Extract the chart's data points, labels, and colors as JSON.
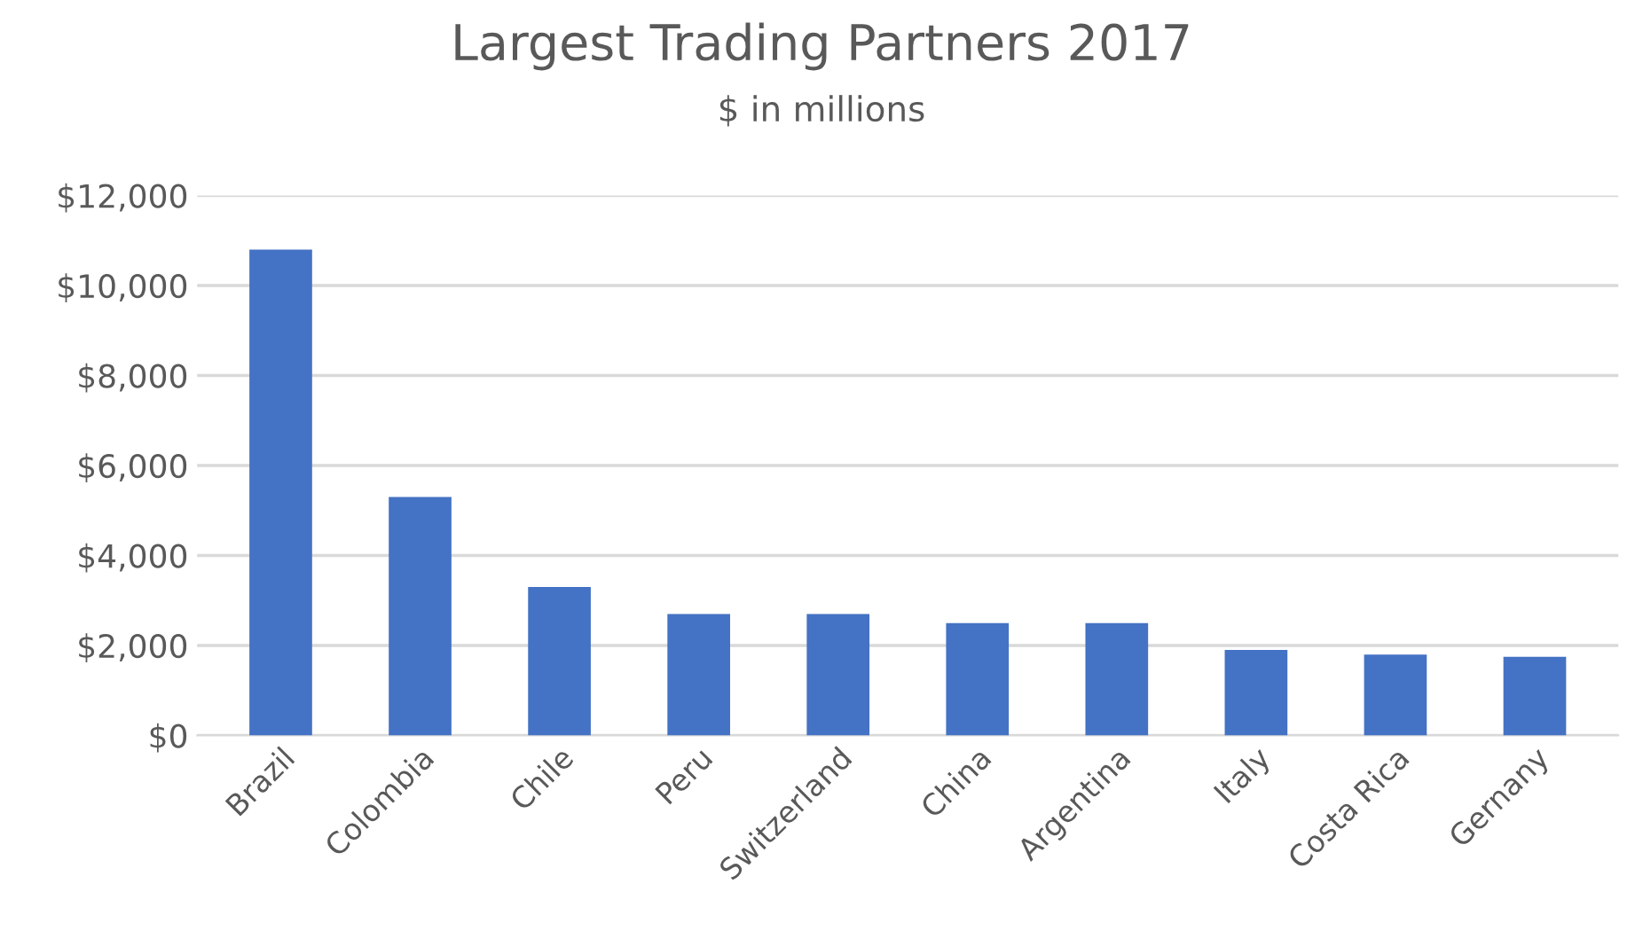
{
  "chart_data": {
    "type": "bar",
    "title": "Largest Trading Partners 2017",
    "subtitle": "$ in millions",
    "categories": [
      "Brazil",
      "Colombia",
      "Chile",
      "Peru",
      "Switzerland",
      "China",
      "Argentina",
      "Italy",
      "Costa Rica",
      "Gernany"
    ],
    "values": [
      10800,
      5300,
      3300,
      2700,
      2700,
      2500,
      2500,
      1900,
      1800,
      1750
    ],
    "color": "#4472c4",
    "ylim": [
      0,
      12000
    ],
    "yticks": [
      {
        "value": 0,
        "label": "$0"
      },
      {
        "value": 2000,
        "label": "$2,000"
      },
      {
        "value": 4000,
        "label": "$4,000"
      },
      {
        "value": 6000,
        "label": "$6,000"
      },
      {
        "value": 8000,
        "label": "$8,000"
      },
      {
        "value": 10000,
        "label": "$10,000"
      },
      {
        "value": 12000,
        "label": "$12,000"
      }
    ],
    "grid": "y"
  }
}
